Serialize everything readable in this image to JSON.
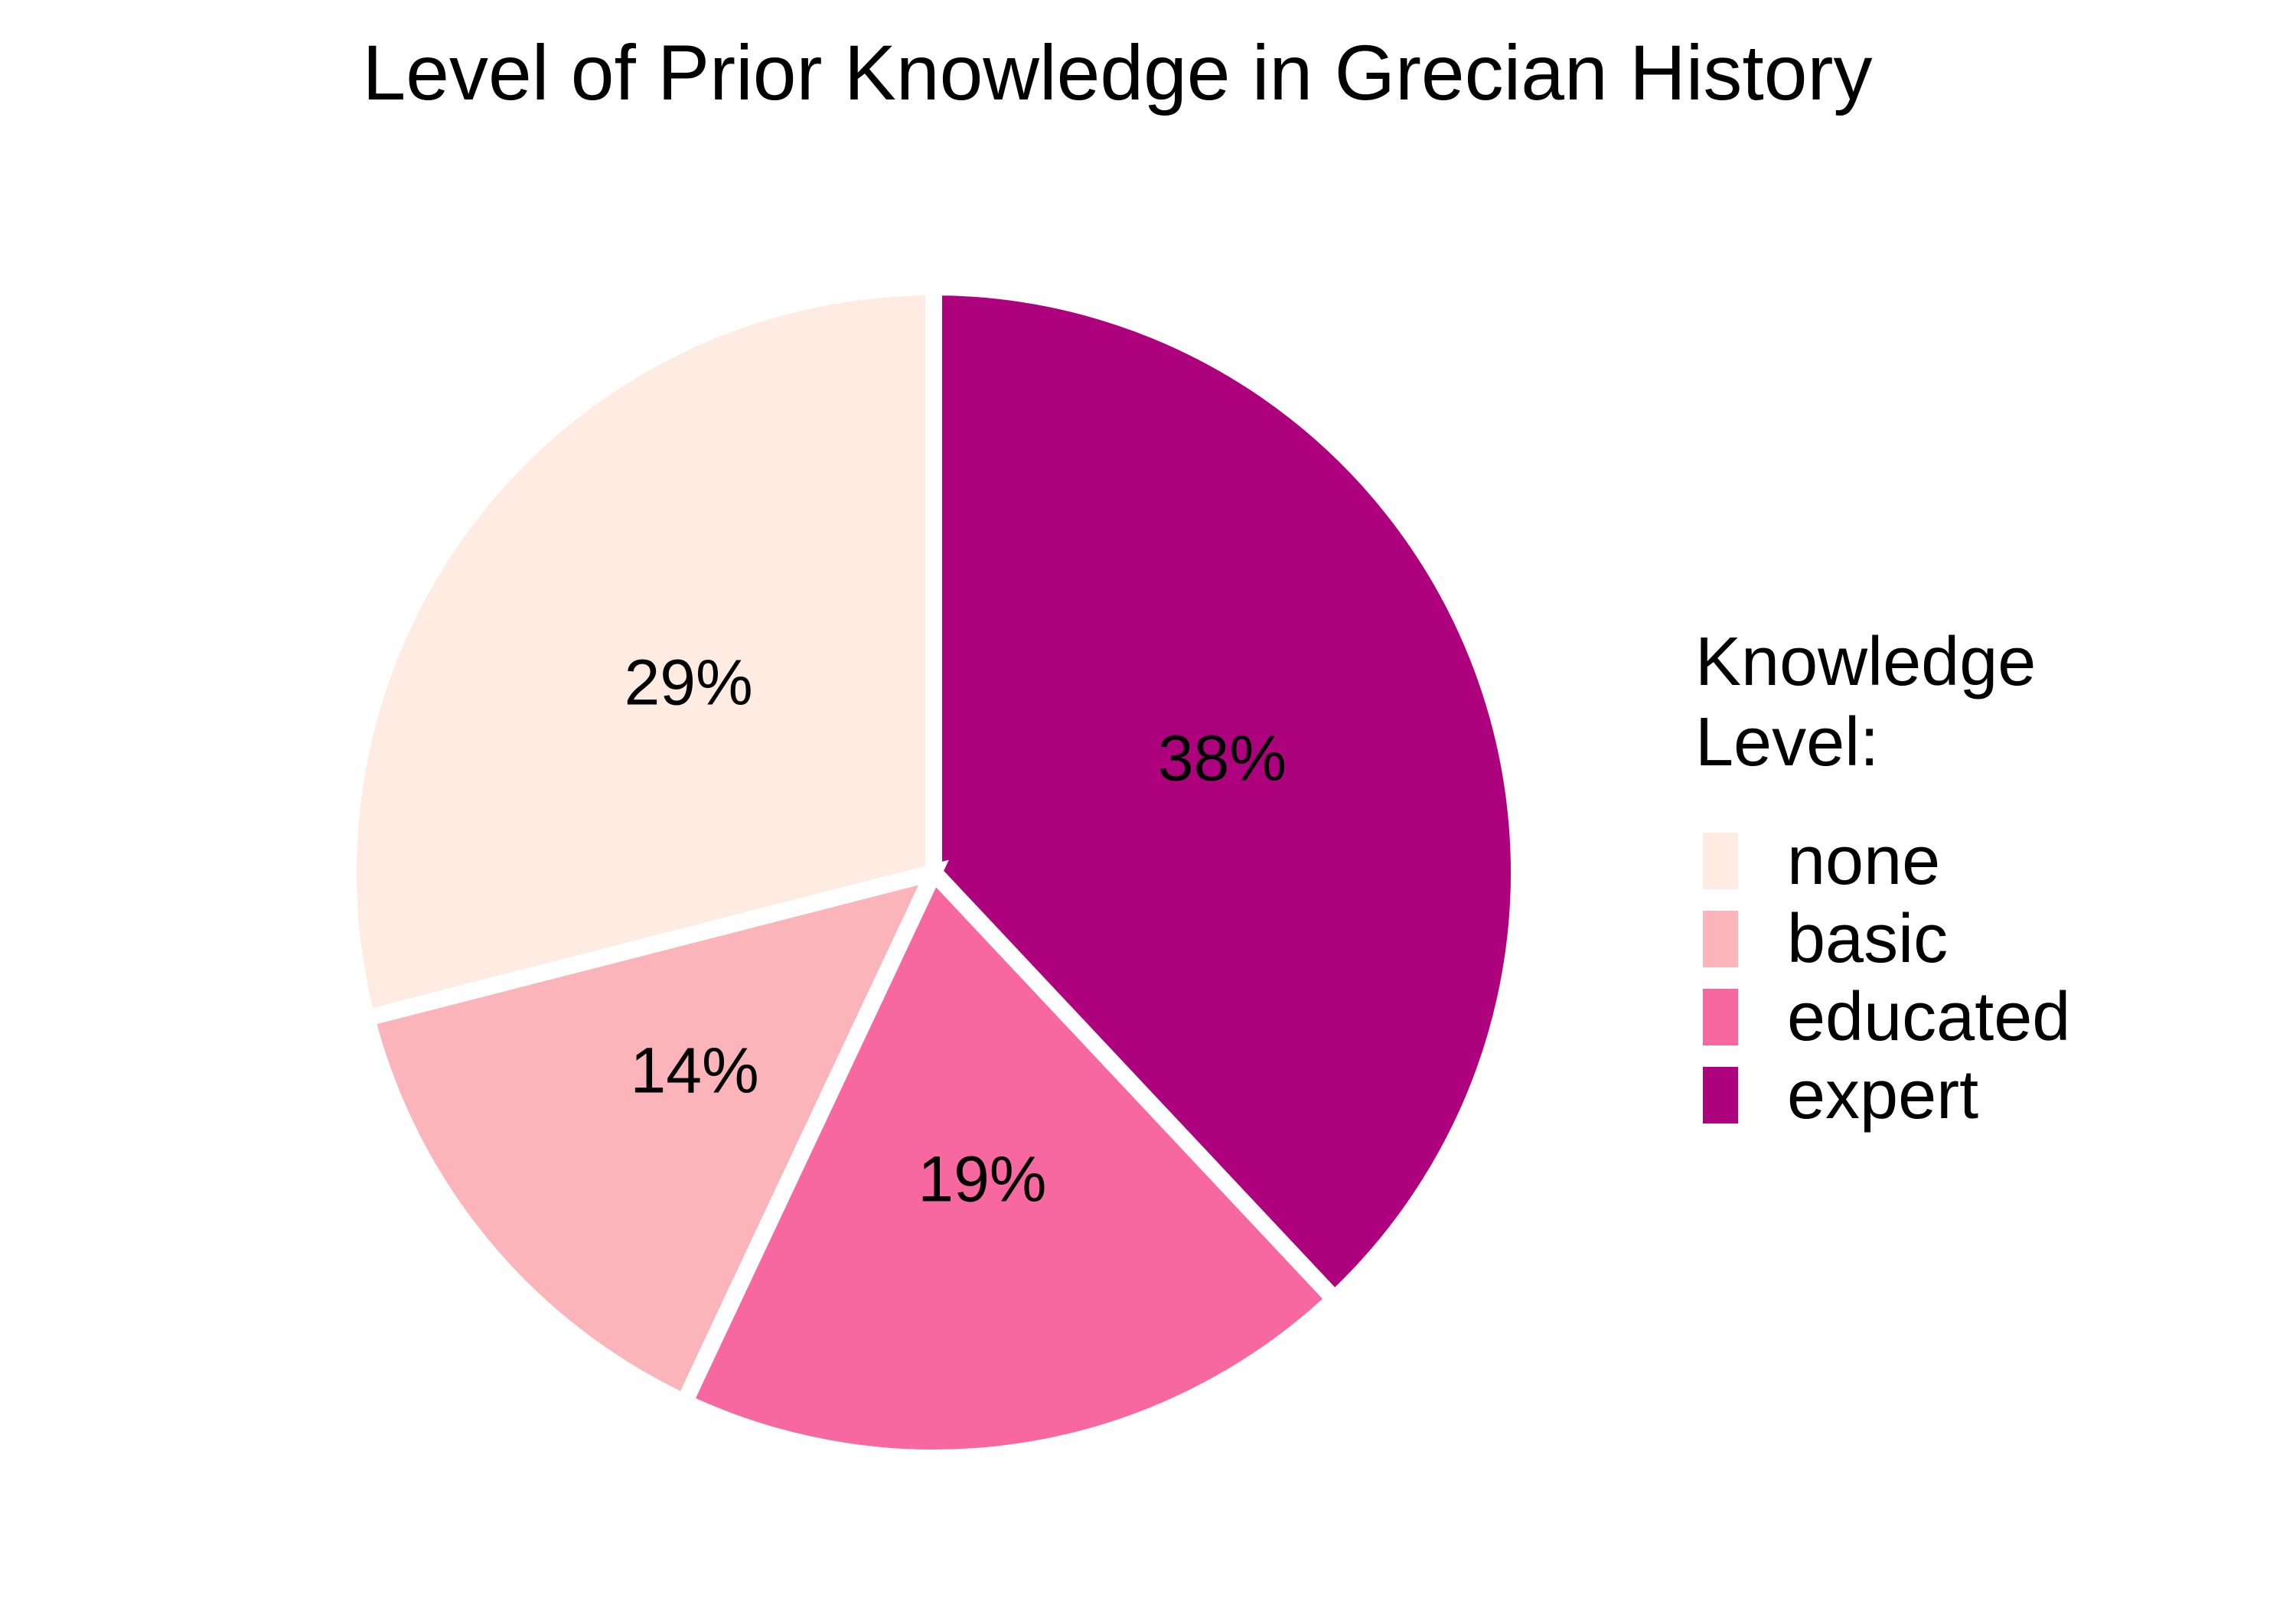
{
  "chart_data": {
    "type": "pie",
    "title": "Level of Prior Knowledge in Grecian History",
    "legend_title_lines": [
      "Knowledge",
      "Level:"
    ],
    "legend_position": "right",
    "slices": [
      {
        "label": "expert",
        "value": 38,
        "display": "38%",
        "color": "#AE017E"
      },
      {
        "label": "educated",
        "value": 19,
        "display": "19%",
        "color": "#F768A1"
      },
      {
        "label": "basic",
        "value": 14,
        "display": "14%",
        "color": "#FBB4B9"
      },
      {
        "label": "none",
        "value": 29,
        "display": "29%",
        "color": "#FEEBE2"
      }
    ],
    "legend_order": [
      "none",
      "basic",
      "educated",
      "expert"
    ],
    "slice_border_color": "#FFFFFF"
  }
}
